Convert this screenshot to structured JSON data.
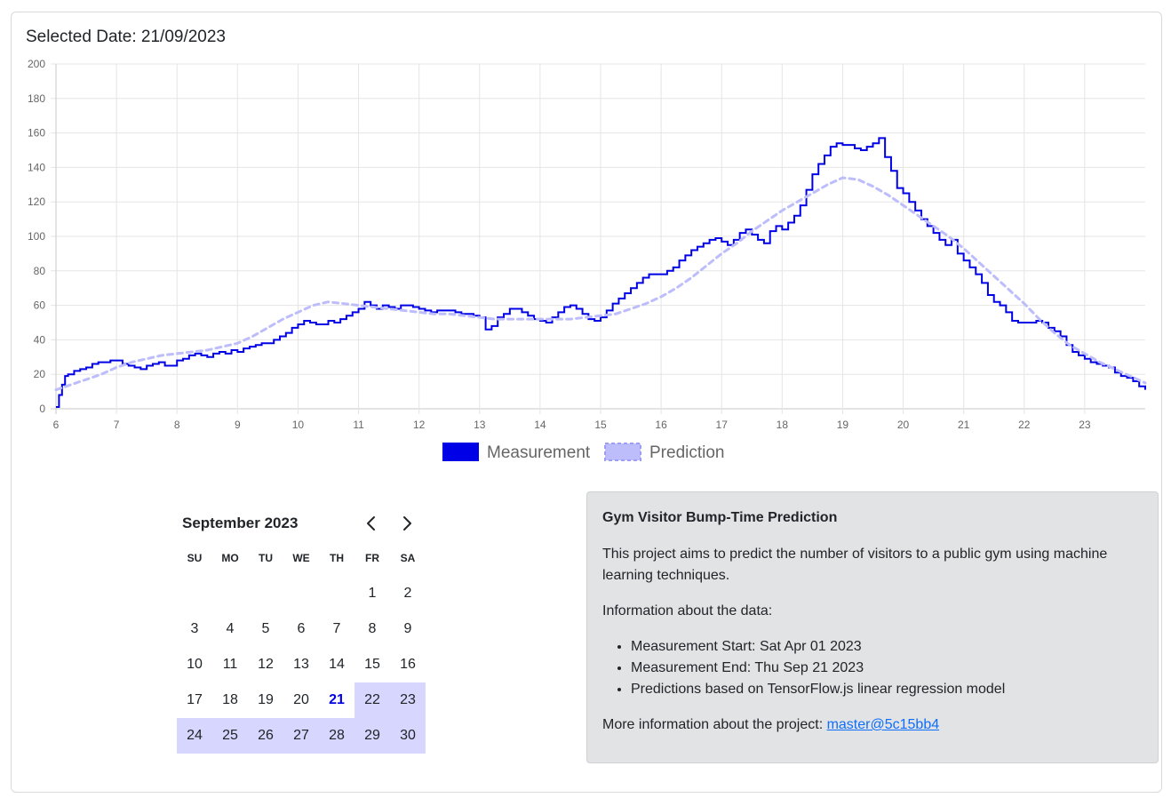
{
  "header": {
    "selected_date": "Selected Date: 21/09/2023"
  },
  "chart_data": {
    "type": "line",
    "title": "",
    "xlabel": "",
    "ylabel": "",
    "xlim": [
      6,
      24
    ],
    "ylim": [
      0,
      200
    ],
    "x_ticks": [
      6,
      7,
      8,
      9,
      10,
      11,
      12,
      13,
      14,
      15,
      16,
      17,
      18,
      19,
      20,
      21,
      22,
      23
    ],
    "y_ticks": [
      0,
      20,
      40,
      60,
      80,
      100,
      120,
      140,
      160,
      180,
      200
    ],
    "grid": true,
    "legend": "bottom-center",
    "series": [
      {
        "name": "Measurement",
        "color": "#0000e6",
        "style": "stepped",
        "points": [
          [
            6.0,
            1
          ],
          [
            6.05,
            8
          ],
          [
            6.1,
            14
          ],
          [
            6.15,
            19
          ],
          [
            6.2,
            20
          ],
          [
            6.3,
            22
          ],
          [
            6.4,
            23
          ],
          [
            6.5,
            24
          ],
          [
            6.6,
            26
          ],
          [
            6.7,
            27
          ],
          [
            6.8,
            27
          ],
          [
            6.9,
            28
          ],
          [
            7.0,
            28
          ],
          [
            7.1,
            26
          ],
          [
            7.2,
            25
          ],
          [
            7.3,
            24
          ],
          [
            7.4,
            23
          ],
          [
            7.5,
            25
          ],
          [
            7.6,
            26
          ],
          [
            7.7,
            27
          ],
          [
            7.8,
            25
          ],
          [
            7.9,
            25
          ],
          [
            8.0,
            28
          ],
          [
            8.1,
            29
          ],
          [
            8.2,
            31
          ],
          [
            8.3,
            32
          ],
          [
            8.4,
            31
          ],
          [
            8.5,
            30
          ],
          [
            8.6,
            32
          ],
          [
            8.7,
            33
          ],
          [
            8.8,
            32
          ],
          [
            8.9,
            34
          ],
          [
            9.0,
            33
          ],
          [
            9.1,
            35
          ],
          [
            9.2,
            36
          ],
          [
            9.3,
            37
          ],
          [
            9.4,
            38
          ],
          [
            9.5,
            38
          ],
          [
            9.6,
            40
          ],
          [
            9.7,
            42
          ],
          [
            9.8,
            44
          ],
          [
            9.9,
            47
          ],
          [
            10.0,
            49
          ],
          [
            10.1,
            51
          ],
          [
            10.2,
            50
          ],
          [
            10.3,
            49
          ],
          [
            10.4,
            49
          ],
          [
            10.5,
            51
          ],
          [
            10.6,
            50
          ],
          [
            10.7,
            52
          ],
          [
            10.8,
            54
          ],
          [
            10.9,
            56
          ],
          [
            11.0,
            58
          ],
          [
            11.1,
            62
          ],
          [
            11.2,
            60
          ],
          [
            11.3,
            58
          ],
          [
            11.4,
            60
          ],
          [
            11.5,
            59
          ],
          [
            11.6,
            58
          ],
          [
            11.7,
            60
          ],
          [
            11.8,
            60
          ],
          [
            11.9,
            59
          ],
          [
            12.0,
            58
          ],
          [
            12.1,
            57
          ],
          [
            12.2,
            56
          ],
          [
            12.3,
            57
          ],
          [
            12.4,
            57
          ],
          [
            12.5,
            57
          ],
          [
            12.6,
            56
          ],
          [
            12.7,
            55
          ],
          [
            12.8,
            55
          ],
          [
            12.9,
            54
          ],
          [
            13.0,
            53
          ],
          [
            13.1,
            46
          ],
          [
            13.2,
            48
          ],
          [
            13.3,
            53
          ],
          [
            13.4,
            55
          ],
          [
            13.5,
            58
          ],
          [
            13.6,
            58
          ],
          [
            13.7,
            56
          ],
          [
            13.8,
            54
          ],
          [
            13.9,
            52
          ],
          [
            14.0,
            51
          ],
          [
            14.1,
            50
          ],
          [
            14.2,
            53
          ],
          [
            14.3,
            56
          ],
          [
            14.4,
            59
          ],
          [
            14.5,
            60
          ],
          [
            14.6,
            58
          ],
          [
            14.7,
            55
          ],
          [
            14.8,
            52
          ],
          [
            14.9,
            51
          ],
          [
            15.0,
            53
          ],
          [
            15.1,
            57
          ],
          [
            15.2,
            61
          ],
          [
            15.3,
            64
          ],
          [
            15.4,
            67
          ],
          [
            15.5,
            70
          ],
          [
            15.6,
            73
          ],
          [
            15.7,
            76
          ],
          [
            15.8,
            78
          ],
          [
            15.9,
            78
          ],
          [
            16.0,
            78
          ],
          [
            16.1,
            80
          ],
          [
            16.2,
            82
          ],
          [
            16.3,
            86
          ],
          [
            16.4,
            89
          ],
          [
            16.5,
            92
          ],
          [
            16.6,
            94
          ],
          [
            16.7,
            96
          ],
          [
            16.8,
            98
          ],
          [
            16.9,
            99
          ],
          [
            17.0,
            97
          ],
          [
            17.1,
            95
          ],
          [
            17.2,
            98
          ],
          [
            17.3,
            102
          ],
          [
            17.4,
            104
          ],
          [
            17.5,
            101
          ],
          [
            17.6,
            98
          ],
          [
            17.7,
            96
          ],
          [
            17.8,
            103
          ],
          [
            17.9,
            106
          ],
          [
            18.0,
            104
          ],
          [
            18.1,
            108
          ],
          [
            18.2,
            112
          ],
          [
            18.3,
            118
          ],
          [
            18.4,
            127
          ],
          [
            18.5,
            136
          ],
          [
            18.6,
            142
          ],
          [
            18.7,
            147
          ],
          [
            18.8,
            152
          ],
          [
            18.9,
            154
          ],
          [
            19.0,
            153
          ],
          [
            19.1,
            153
          ],
          [
            19.2,
            151
          ],
          [
            19.3,
            150
          ],
          [
            19.4,
            152
          ],
          [
            19.5,
            154
          ],
          [
            19.6,
            157
          ],
          [
            19.7,
            146
          ],
          [
            19.8,
            138
          ],
          [
            19.9,
            128
          ],
          [
            20.0,
            125
          ],
          [
            20.1,
            120
          ],
          [
            20.2,
            115
          ],
          [
            20.3,
            110
          ],
          [
            20.4,
            106
          ],
          [
            20.5,
            102
          ],
          [
            20.6,
            98
          ],
          [
            20.7,
            95
          ],
          [
            20.8,
            98
          ],
          [
            20.9,
            90
          ],
          [
            21.0,
            86
          ],
          [
            21.1,
            82
          ],
          [
            21.2,
            78
          ],
          [
            21.3,
            73
          ],
          [
            21.4,
            66
          ],
          [
            21.5,
            62
          ],
          [
            21.6,
            60
          ],
          [
            21.7,
            56
          ],
          [
            21.8,
            51
          ],
          [
            21.9,
            50
          ],
          [
            22.0,
            50
          ],
          [
            22.1,
            50
          ],
          [
            22.2,
            51
          ],
          [
            22.3,
            50
          ],
          [
            22.4,
            47
          ],
          [
            22.5,
            45
          ],
          [
            22.6,
            42
          ],
          [
            22.7,
            37
          ],
          [
            22.8,
            33
          ],
          [
            22.9,
            31
          ],
          [
            23.0,
            29
          ],
          [
            23.1,
            27
          ],
          [
            23.2,
            26
          ],
          [
            23.3,
            25
          ],
          [
            23.4,
            24
          ],
          [
            23.5,
            21
          ],
          [
            23.6,
            19
          ],
          [
            23.7,
            18
          ],
          [
            23.8,
            16
          ],
          [
            23.9,
            13
          ],
          [
            24.0,
            11
          ]
        ]
      },
      {
        "name": "Prediction",
        "color": "#bdbdfb",
        "style": "dashed",
        "points": [
          [
            6.0,
            11
          ],
          [
            6.25,
            14
          ],
          [
            6.5,
            17
          ],
          [
            6.75,
            20
          ],
          [
            7.0,
            24
          ],
          [
            7.25,
            27
          ],
          [
            7.5,
            29
          ],
          [
            7.75,
            31
          ],
          [
            8.0,
            32
          ],
          [
            8.25,
            33
          ],
          [
            8.5,
            34
          ],
          [
            8.75,
            36
          ],
          [
            9.0,
            38
          ],
          [
            9.25,
            42
          ],
          [
            9.5,
            47
          ],
          [
            9.75,
            52
          ],
          [
            10.0,
            56
          ],
          [
            10.25,
            60
          ],
          [
            10.5,
            62
          ],
          [
            10.75,
            61
          ],
          [
            11.0,
            60
          ],
          [
            11.25,
            59
          ],
          [
            11.5,
            58
          ],
          [
            11.75,
            57
          ],
          [
            12.0,
            56
          ],
          [
            12.25,
            55
          ],
          [
            12.5,
            55
          ],
          [
            12.75,
            54
          ],
          [
            13.0,
            53
          ],
          [
            13.25,
            52
          ],
          [
            13.5,
            52
          ],
          [
            13.75,
            52
          ],
          [
            14.0,
            52
          ],
          [
            14.25,
            52
          ],
          [
            14.5,
            52
          ],
          [
            14.75,
            53
          ],
          [
            15.0,
            54
          ],
          [
            15.25,
            55
          ],
          [
            15.5,
            58
          ],
          [
            15.75,
            61
          ],
          [
            16.0,
            65
          ],
          [
            16.25,
            70
          ],
          [
            16.5,
            76
          ],
          [
            16.75,
            83
          ],
          [
            17.0,
            90
          ],
          [
            17.25,
            96
          ],
          [
            17.5,
            103
          ],
          [
            17.75,
            109
          ],
          [
            18.0,
            115
          ],
          [
            18.25,
            120
          ],
          [
            18.5,
            125
          ],
          [
            18.75,
            130
          ],
          [
            19.0,
            134
          ],
          [
            19.25,
            133
          ],
          [
            19.5,
            129
          ],
          [
            19.75,
            124
          ],
          [
            20.0,
            118
          ],
          [
            20.25,
            112
          ],
          [
            20.5,
            106
          ],
          [
            20.75,
            100
          ],
          [
            21.0,
            93
          ],
          [
            21.25,
            85
          ],
          [
            21.5,
            77
          ],
          [
            21.75,
            69
          ],
          [
            22.0,
            61
          ],
          [
            22.25,
            52
          ],
          [
            22.5,
            44
          ],
          [
            22.75,
            37
          ],
          [
            23.0,
            32
          ],
          [
            23.25,
            27
          ],
          [
            23.5,
            23
          ],
          [
            23.75,
            19
          ],
          [
            24.0,
            15
          ]
        ]
      }
    ]
  },
  "calendar": {
    "month_label": "September 2023",
    "prev_icon": "chevron-left-icon",
    "next_icon": "chevron-right-icon",
    "weekdays": [
      "SU",
      "MO",
      "TU",
      "WE",
      "TH",
      "FR",
      "SA"
    ],
    "leading_blanks": 5,
    "days": [
      "1",
      "2",
      "3",
      "4",
      "5",
      "6",
      "7",
      "8",
      "9",
      "10",
      "11",
      "12",
      "13",
      "14",
      "15",
      "16",
      "17",
      "18",
      "19",
      "20",
      "21",
      "22",
      "23",
      "24",
      "25",
      "26",
      "27",
      "28",
      "29",
      "30"
    ],
    "selected_day": 21,
    "selected_color": "#0000e6",
    "future_highlight_color": "#d6d6fe"
  },
  "info": {
    "title": "Gym Visitor Bump-Time Prediction",
    "description": "This project aims to predict the number of visitors to a public gym using machine learning techniques.",
    "data_heading": "Information about the data:",
    "items": [
      "Measurement Start: Sat Apr 01 2023",
      "Measurement End: Thu Sep 21 2023",
      "Predictions based on TensorFlow.js linear regression model"
    ],
    "more_prefix": "More information about the project: ",
    "link_text": "master@5c15bb4"
  }
}
